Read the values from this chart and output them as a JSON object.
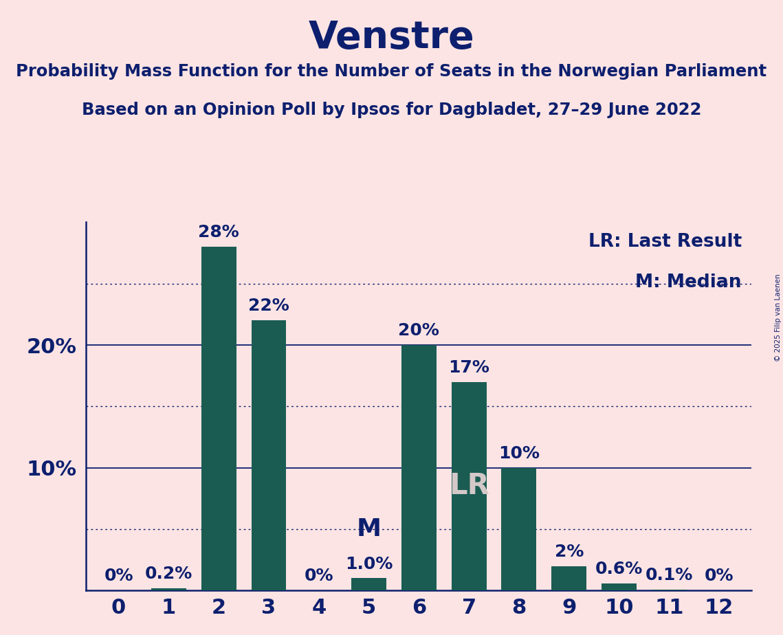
{
  "title": "Venstre",
  "subtitle1": "Probability Mass Function for the Number of Seats in the Norwegian Parliament",
  "subtitle2": "Based on an Opinion Poll by Ipsos for Dagbladet, 27–29 June 2022",
  "copyright": "© 2025 Filip van Laenen",
  "categories": [
    0,
    1,
    2,
    3,
    4,
    5,
    6,
    7,
    8,
    9,
    10,
    11,
    12
  ],
  "values": [
    0.0,
    0.2,
    28.0,
    22.0,
    0.0,
    1.0,
    20.0,
    17.0,
    10.0,
    2.0,
    0.6,
    0.1,
    0.0
  ],
  "bar_color": "#1a5c52",
  "background_color": "#fce4e4",
  "text_color": "#0d1f6e",
  "bar_labels": [
    "0%",
    "0.2%",
    "28%",
    "22%",
    "0%",
    "1.0%",
    "20%",
    "17%",
    "10%",
    "2%",
    "0.6%",
    "0.1%",
    "0%"
  ],
  "median_bar": 5,
  "lr_bar": 7,
  "legend_lr": "LR: Last Result",
  "legend_m": "M: Median",
  "yticks": [
    10,
    20
  ],
  "ytick_labels": [
    "10%",
    "20%"
  ],
  "dotted_lines": [
    5,
    15,
    25
  ],
  "solid_lines": [
    10,
    20
  ],
  "ylim": [
    0,
    30
  ],
  "figsize": [
    11.39,
    9.24
  ],
  "dpi": 100
}
